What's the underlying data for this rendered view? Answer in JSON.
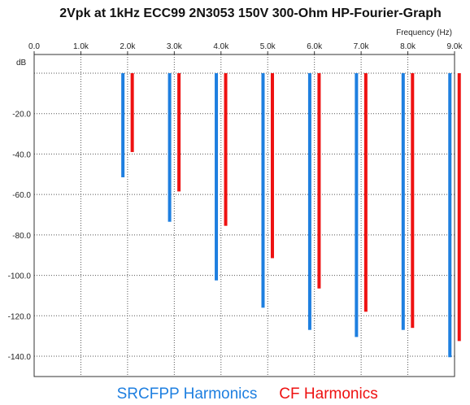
{
  "chart_data": {
    "type": "bar",
    "title": "2Vpk at 1kHz ECC99 2N3053 150V 300-Ohm HP-Fourier-Graph",
    "xlabel": "Frequency   (Hz)",
    "ylabel": "dB",
    "xlim": [
      0,
      9000
    ],
    "ylim": [
      -150,
      0
    ],
    "x_ticks": [
      {
        "value": 0,
        "label": "0.0"
      },
      {
        "value": 1000,
        "label": "1.0k"
      },
      {
        "value": 2000,
        "label": "2.0k"
      },
      {
        "value": 3000,
        "label": "3.0k"
      },
      {
        "value": 4000,
        "label": "4.0k"
      },
      {
        "value": 5000,
        "label": "5.0k"
      },
      {
        "value": 6000,
        "label": "6.0k"
      },
      {
        "value": 7000,
        "label": "7.0k"
      },
      {
        "value": 8000,
        "label": "8.0k"
      },
      {
        "value": 9000,
        "label": "9.0k"
      }
    ],
    "y_ticks": [
      {
        "value": -20,
        "label": "-20.0"
      },
      {
        "value": -40,
        "label": "-40.0"
      },
      {
        "value": -60,
        "label": "-60.0"
      },
      {
        "value": -80,
        "label": "-80.0"
      },
      {
        "value": -100,
        "label": "-100.0"
      },
      {
        "value": -120,
        "label": "-120.0"
      },
      {
        "value": -140,
        "label": "-140.0"
      }
    ],
    "grid": true,
    "legend_position": "bottom",
    "series": [
      {
        "name": "SRCFPP Harmonics",
        "color": "#1e7fe0",
        "x": [
          1900,
          2900,
          3900,
          4900,
          5900,
          6900,
          7900,
          8900
        ],
        "values": [
          -51.5,
          -73.5,
          -102.5,
          -116,
          -127,
          -130.5,
          -127,
          -140.5
        ]
      },
      {
        "name": "CF Harmonics",
        "color": "#ee1111",
        "x": [
          2100,
          3100,
          4100,
          5100,
          6100,
          7100,
          8100,
          9100
        ],
        "values": [
          -39,
          -58.5,
          -75.5,
          -91.5,
          -106.5,
          -118,
          -126,
          -132.5
        ]
      }
    ]
  }
}
